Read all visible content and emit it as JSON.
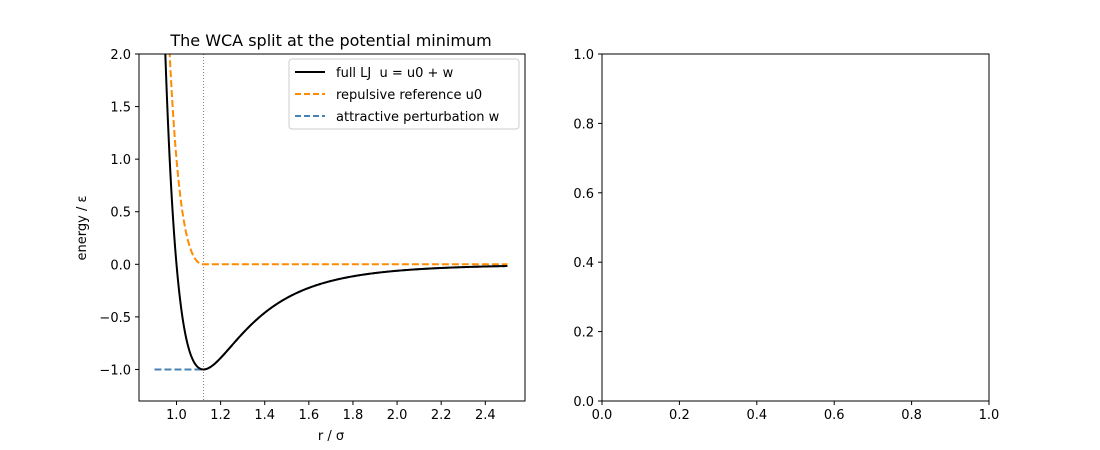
{
  "chart_data": [
    {
      "type": "line",
      "title": "The WCA split at the potential minimum",
      "xlabel": "r / σ",
      "ylabel": "energy / ε",
      "xlim": [
        0.83,
        2.58
      ],
      "ylim": [
        -1.3,
        2.0
      ],
      "xticks": [
        1.0,
        1.2,
        1.4,
        1.6,
        1.8,
        2.0,
        2.2,
        2.4
      ],
      "xtick_labels": [
        "1.0",
        "1.2",
        "1.4",
        "1.6",
        "1.8",
        "2.0",
        "2.2",
        "2.4"
      ],
      "yticks": [
        -1.0,
        -0.5,
        0.0,
        0.5,
        1.0,
        1.5,
        2.0
      ],
      "ytick_labels": [
        "−1.0",
        "−0.5",
        "0.0",
        "0.5",
        "1.0",
        "1.5",
        "2.0"
      ],
      "grid": false,
      "legend_position": "top-right",
      "x_range": [
        0.9,
        2.5
      ],
      "vline_x": 1.1225,
      "series": [
        {
          "name": "full LJ  u = u0 + w",
          "style": "solid",
          "color": "#000000",
          "x": [
            0.95,
            0.97,
            1.0,
            1.03,
            1.06,
            1.08,
            1.1,
            1.1225,
            1.15,
            1.2,
            1.3,
            1.4,
            1.6,
            1.8,
            2.0,
            2.2,
            2.5
          ],
          "y": [
            2.0,
            1.03,
            0.0,
            -0.5,
            -0.79,
            -0.91,
            -0.98,
            -1.0,
            -0.98,
            -0.89,
            -0.65,
            -0.45,
            -0.22,
            -0.12,
            -0.06,
            -0.04,
            -0.016
          ]
        },
        {
          "name": "repulsive reference u0",
          "style": "dashed",
          "color": "#ff8c00",
          "x": [
            0.97,
            1.0,
            1.03,
            1.06,
            1.08,
            1.1,
            1.1225,
            2.5
          ],
          "y": [
            2.0,
            1.0,
            0.5,
            0.21,
            0.09,
            0.02,
            0.0,
            0.0
          ]
        },
        {
          "name": "attractive perturbation w",
          "style": "dashed",
          "color": "#4682b4",
          "x": [
            0.9,
            1.1225,
            1.15,
            1.2,
            1.3,
            1.4,
            1.6,
            1.8,
            2.0,
            2.2,
            2.5
          ],
          "y": [
            -1.0,
            -1.0,
            -0.98,
            -0.89,
            -0.65,
            -0.45,
            -0.22,
            -0.12,
            -0.06,
            -0.04,
            -0.016
          ]
        }
      ]
    },
    {
      "type": "line",
      "title": "",
      "xlabel": "",
      "ylabel": "",
      "xlim": [
        0.0,
        1.0
      ],
      "ylim": [
        0.0,
        1.0
      ],
      "xticks": [
        0.0,
        0.2,
        0.4,
        0.6,
        0.8,
        1.0
      ],
      "xtick_labels": [
        "0.0",
        "0.2",
        "0.4",
        "0.6",
        "0.8",
        "1.0"
      ],
      "yticks": [
        0.0,
        0.2,
        0.4,
        0.6,
        0.8,
        1.0
      ],
      "ytick_labels": [
        "0.0",
        "0.2",
        "0.4",
        "0.6",
        "0.8",
        "1.0"
      ],
      "grid": false,
      "series": []
    }
  ]
}
